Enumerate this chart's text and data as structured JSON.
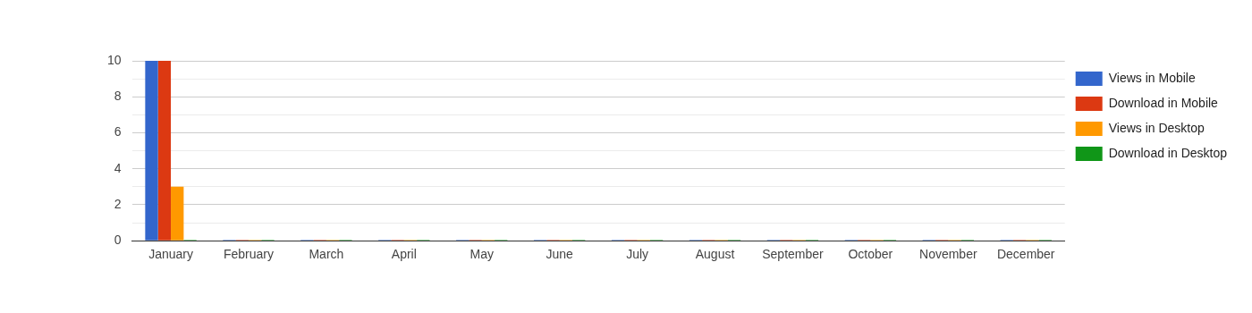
{
  "chart_data": {
    "type": "bar",
    "categories": [
      "January",
      "February",
      "March",
      "April",
      "May",
      "June",
      "July",
      "August",
      "September",
      "October",
      "November",
      "December"
    ],
    "series": [
      {
        "name": "Views in Mobile",
        "color": "#3366cc",
        "values": [
          10,
          0,
          0,
          0,
          0,
          0,
          0,
          0,
          0,
          0,
          0,
          0
        ]
      },
      {
        "name": "Download in Mobile",
        "color": "#dc3912",
        "values": [
          10,
          0,
          0,
          0,
          0,
          0,
          0,
          0,
          0,
          0,
          0,
          0
        ]
      },
      {
        "name": "Views in Desktop",
        "color": "#ff9900",
        "values": [
          3,
          0,
          0,
          0,
          0,
          0,
          0,
          0,
          0,
          0,
          0,
          0
        ]
      },
      {
        "name": "Download in Desktop",
        "color": "#109618",
        "values": [
          0,
          0,
          0,
          0,
          0,
          0,
          0,
          0,
          0,
          0,
          0,
          0
        ]
      }
    ],
    "ylim": [
      0,
      10
    ],
    "yticks": [
      0,
      {
        "value": 1,
        "label": null
      },
      2,
      {
        "value": 3,
        "label": null
      },
      4,
      {
        "value": 5,
        "label": null
      },
      6,
      {
        "value": 7,
        "label": null
      },
      8,
      {
        "value": 9,
        "label": null
      },
      10
    ],
    "grid": true,
    "legend": "right"
  }
}
